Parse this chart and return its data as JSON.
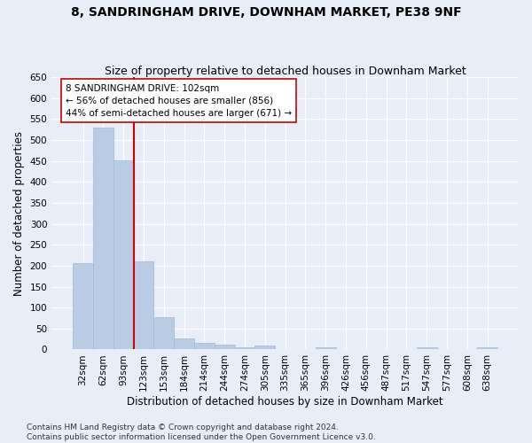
{
  "title": "8, SANDRINGHAM DRIVE, DOWNHAM MARKET, PE38 9NF",
  "subtitle": "Size of property relative to detached houses in Downham Market",
  "xlabel": "Distribution of detached houses by size in Downham Market",
  "ylabel": "Number of detached properties",
  "categories": [
    "32sqm",
    "62sqm",
    "93sqm",
    "123sqm",
    "153sqm",
    "184sqm",
    "214sqm",
    "244sqm",
    "274sqm",
    "305sqm",
    "335sqm",
    "365sqm",
    "396sqm",
    "426sqm",
    "456sqm",
    "487sqm",
    "517sqm",
    "547sqm",
    "577sqm",
    "608sqm",
    "638sqm"
  ],
  "values": [
    207,
    530,
    452,
    211,
    77,
    26,
    15,
    12,
    6,
    9,
    0,
    0,
    6,
    0,
    0,
    0,
    0,
    6,
    0,
    0,
    6
  ],
  "bar_color": "#b8cce4",
  "bar_edge_color": "#a0b8d8",
  "vline_x": 2.5,
  "vline_color": "#cc0000",
  "annotation_box_text": "8 SANDRINGHAM DRIVE: 102sqm\n← 56% of detached houses are smaller (856)\n44% of semi-detached houses are larger (671) →",
  "ylim": [
    0,
    650
  ],
  "yticks": [
    0,
    50,
    100,
    150,
    200,
    250,
    300,
    350,
    400,
    450,
    500,
    550,
    600,
    650
  ],
  "background_color": "#e8eef8",
  "grid_color": "#ffffff",
  "footer_text": "Contains HM Land Registry data © Crown copyright and database right 2024.\nContains public sector information licensed under the Open Government Licence v3.0.",
  "title_fontsize": 10,
  "subtitle_fontsize": 9,
  "xlabel_fontsize": 8.5,
  "ylabel_fontsize": 8.5,
  "tick_fontsize": 7.5,
  "annotation_fontsize": 7.5,
  "footer_fontsize": 6.5
}
